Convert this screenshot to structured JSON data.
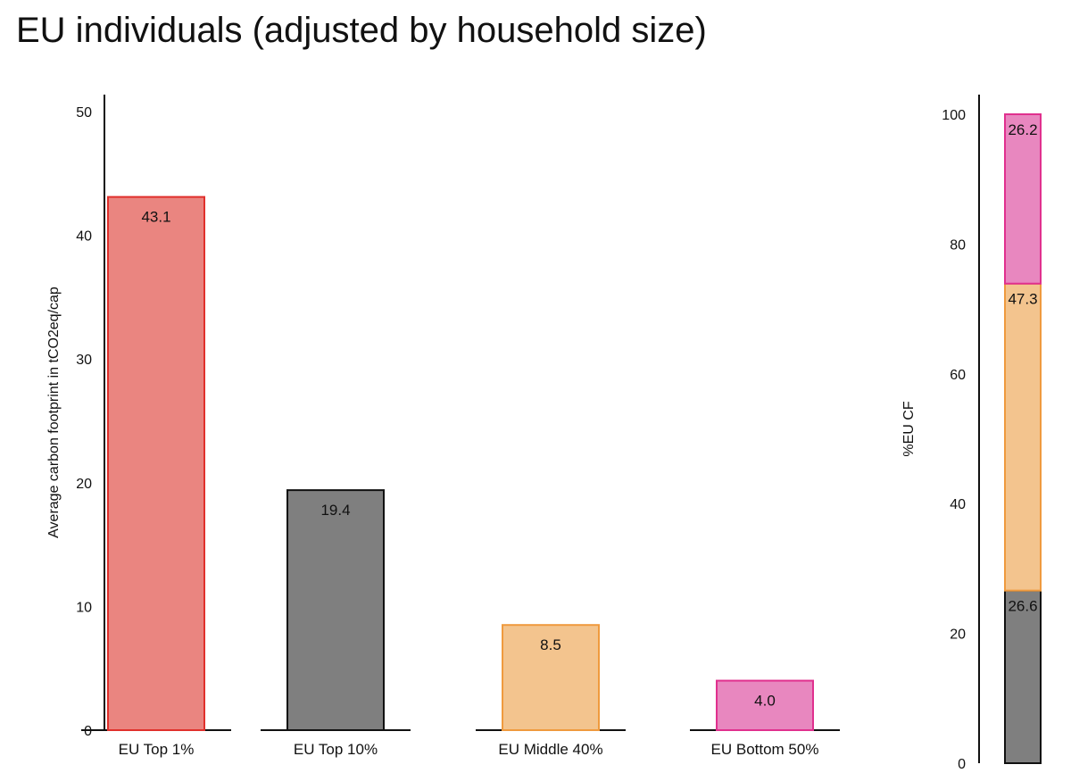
{
  "title": "EU individuals (adjusted by household size)",
  "chart_data": [
    {
      "type": "bar",
      "categories": [
        "EU Top 1%",
        "EU Top 10%",
        "EU Middle 40%",
        "EU Bottom 50%"
      ],
      "values": [
        43.1,
        19.4,
        8.5,
        4.0
      ],
      "data_labels": [
        "43.1",
        "19.4",
        "8.5",
        "4.0"
      ],
      "colors": [
        "#ea8580",
        "#7f7f7f",
        "#f3c48e",
        "#e887bf"
      ],
      "border_colors": [
        "#e0302c",
        "#111111",
        "#ef9a3e",
        "#e0308e"
      ],
      "ylabel": "Average carbon footprint in tCO2eq/cap",
      "ylim": [
        0,
        50
      ],
      "yticks": [
        0,
        10,
        20,
        30,
        40,
        50
      ],
      "grid": false
    },
    {
      "type": "bar",
      "stacked": true,
      "series": [
        {
          "values": [
            26.6
          ],
          "label": "26.6",
          "color": "#7f7f7f",
          "border": "#111111"
        },
        {
          "values": [
            47.3
          ],
          "label": "47.3",
          "color": "#f3c48e",
          "border": "#ef9a3e"
        },
        {
          "values": [
            26.2
          ],
          "label": "26.2",
          "color": "#e887bf",
          "border": "#e0308e"
        }
      ],
      "ylabel": "%EU CF",
      "ylim": [
        0,
        100
      ],
      "yticks": [
        0,
        20,
        40,
        60,
        80,
        100
      ],
      "grid": false
    }
  ]
}
